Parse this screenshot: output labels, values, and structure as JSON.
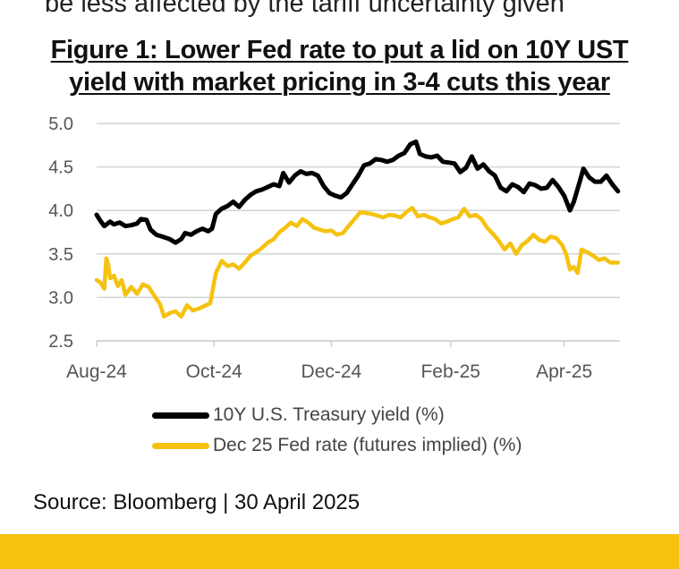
{
  "header": {
    "clipped_text": "be less affected by the tariff uncertainty given",
    "title_line1": "Figure 1: Lower Fed rate to put a lid on 10Y UST",
    "title_line2": "yield with market pricing in 3-4 cuts this year"
  },
  "footer": {
    "source": "Source: Bloomberg | 30 April 2025",
    "bar_color": "#f7c20f"
  },
  "chart_data": {
    "type": "line",
    "x_range": [
      "2024-08-01",
      "2025-04-30"
    ],
    "ylim": [
      2.5,
      5.0
    ],
    "yticks": [
      "2.5",
      "3.0",
      "3.5",
      "4.0",
      "4.5",
      "5.0"
    ],
    "xticks": [
      {
        "date": "2024-08-01",
        "label": "Aug-24"
      },
      {
        "date": "2024-10-01",
        "label": "Oct-24"
      },
      {
        "date": "2024-12-01",
        "label": "Dec-24"
      },
      {
        "date": "2025-02-01",
        "label": "Feb-25"
      },
      {
        "date": "2025-04-01",
        "label": "Apr-25"
      }
    ],
    "grid": "horizontal",
    "legend_position": "bottom",
    "series": [
      {
        "name": "10Y U.S. Treasury yield (%)",
        "color": "#000000",
        "points": [
          [
            "2024-08-01",
            3.95
          ],
          [
            "2024-08-03",
            3.88
          ],
          [
            "2024-08-05",
            3.82
          ],
          [
            "2024-08-08",
            3.87
          ],
          [
            "2024-08-10",
            3.84
          ],
          [
            "2024-08-13",
            3.86
          ],
          [
            "2024-08-16",
            3.82
          ],
          [
            "2024-08-19",
            3.83
          ],
          [
            "2024-08-22",
            3.85
          ],
          [
            "2024-08-24",
            3.9
          ],
          [
            "2024-08-27",
            3.89
          ],
          [
            "2024-08-29",
            3.78
          ],
          [
            "2024-09-01",
            3.72
          ],
          [
            "2024-09-04",
            3.7
          ],
          [
            "2024-09-08",
            3.67
          ],
          [
            "2024-09-11",
            3.63
          ],
          [
            "2024-09-14",
            3.67
          ],
          [
            "2024-09-16",
            3.74
          ],
          [
            "2024-09-19",
            3.72
          ],
          [
            "2024-09-22",
            3.76
          ],
          [
            "2024-09-25",
            3.79
          ],
          [
            "2024-09-28",
            3.76
          ],
          [
            "2024-09-30",
            3.79
          ],
          [
            "2024-10-02",
            3.96
          ],
          [
            "2024-10-05",
            4.02
          ],
          [
            "2024-10-08",
            4.05
          ],
          [
            "2024-10-11",
            4.1
          ],
          [
            "2024-10-14",
            4.04
          ],
          [
            "2024-10-17",
            4.12
          ],
          [
            "2024-10-20",
            4.18
          ],
          [
            "2024-10-23",
            4.22
          ],
          [
            "2024-10-26",
            4.24
          ],
          [
            "2024-10-29",
            4.27
          ],
          [
            "2024-11-01",
            4.3
          ],
          [
            "2024-11-04",
            4.28
          ],
          [
            "2024-11-06",
            4.43
          ],
          [
            "2024-11-09",
            4.32
          ],
          [
            "2024-11-12",
            4.4
          ],
          [
            "2024-11-15",
            4.45
          ],
          [
            "2024-11-18",
            4.42
          ],
          [
            "2024-11-21",
            4.43
          ],
          [
            "2024-11-24",
            4.4
          ],
          [
            "2024-11-27",
            4.28
          ],
          [
            "2024-11-30",
            4.2
          ],
          [
            "2024-12-03",
            4.17
          ],
          [
            "2024-12-06",
            4.15
          ],
          [
            "2024-12-09",
            4.2
          ],
          [
            "2024-12-12",
            4.3
          ],
          [
            "2024-12-15",
            4.4
          ],
          [
            "2024-12-18",
            4.52
          ],
          [
            "2024-12-21",
            4.54
          ],
          [
            "2024-12-24",
            4.59
          ],
          [
            "2024-12-27",
            4.58
          ],
          [
            "2024-12-30",
            4.56
          ],
          [
            "2025-01-02",
            4.58
          ],
          [
            "2025-01-05",
            4.63
          ],
          [
            "2025-01-08",
            4.66
          ],
          [
            "2025-01-11",
            4.76
          ],
          [
            "2025-01-14",
            4.79
          ],
          [
            "2025-01-16",
            4.65
          ],
          [
            "2025-01-19",
            4.62
          ],
          [
            "2025-01-22",
            4.61
          ],
          [
            "2025-01-25",
            4.63
          ],
          [
            "2025-01-28",
            4.56
          ],
          [
            "2025-01-31",
            4.55
          ],
          [
            "2025-02-03",
            4.54
          ],
          [
            "2025-02-06",
            4.44
          ],
          [
            "2025-02-09",
            4.49
          ],
          [
            "2025-02-12",
            4.62
          ],
          [
            "2025-02-15",
            4.48
          ],
          [
            "2025-02-18",
            4.53
          ],
          [
            "2025-02-21",
            4.45
          ],
          [
            "2025-02-24",
            4.4
          ],
          [
            "2025-02-27",
            4.26
          ],
          [
            "2025-03-02",
            4.22
          ],
          [
            "2025-03-05",
            4.3
          ],
          [
            "2025-03-08",
            4.27
          ],
          [
            "2025-03-11",
            4.21
          ],
          [
            "2025-03-14",
            4.31
          ],
          [
            "2025-03-17",
            4.29
          ],
          [
            "2025-03-20",
            4.25
          ],
          [
            "2025-03-23",
            4.26
          ],
          [
            "2025-03-26",
            4.35
          ],
          [
            "2025-03-29",
            4.27
          ],
          [
            "2025-04-01",
            4.17
          ],
          [
            "2025-04-03",
            4.06
          ],
          [
            "2025-04-04",
            4.0
          ],
          [
            "2025-04-06",
            4.1
          ],
          [
            "2025-04-08",
            4.25
          ],
          [
            "2025-04-10",
            4.4
          ],
          [
            "2025-04-11",
            4.48
          ],
          [
            "2025-04-14",
            4.38
          ],
          [
            "2025-04-17",
            4.33
          ],
          [
            "2025-04-20",
            4.33
          ],
          [
            "2025-04-23",
            4.4
          ],
          [
            "2025-04-26",
            4.3
          ],
          [
            "2025-04-29",
            4.22
          ]
        ]
      },
      {
        "name": "Dec 25 Fed rate (futures implied) (%)",
        "color": "#f5c20f",
        "points": [
          [
            "2024-08-01",
            3.2
          ],
          [
            "2024-08-03",
            3.17
          ],
          [
            "2024-08-05",
            3.1
          ],
          [
            "2024-08-06",
            3.45
          ],
          [
            "2024-08-07",
            3.38
          ],
          [
            "2024-08-08",
            3.22
          ],
          [
            "2024-08-10",
            3.25
          ],
          [
            "2024-08-12",
            3.13
          ],
          [
            "2024-08-14",
            3.2
          ],
          [
            "2024-08-16",
            3.03
          ],
          [
            "2024-08-19",
            3.12
          ],
          [
            "2024-08-22",
            3.04
          ],
          [
            "2024-08-25",
            3.15
          ],
          [
            "2024-08-28",
            3.12
          ],
          [
            "2024-08-31",
            3.02
          ],
          [
            "2024-09-03",
            2.92
          ],
          [
            "2024-09-05",
            2.78
          ],
          [
            "2024-09-08",
            2.82
          ],
          [
            "2024-09-11",
            2.84
          ],
          [
            "2024-09-14",
            2.78
          ],
          [
            "2024-09-17",
            2.91
          ],
          [
            "2024-09-20",
            2.85
          ],
          [
            "2024-09-23",
            2.87
          ],
          [
            "2024-09-26",
            2.9
          ],
          [
            "2024-09-29",
            2.93
          ],
          [
            "2024-10-02",
            3.28
          ],
          [
            "2024-10-05",
            3.42
          ],
          [
            "2024-10-08",
            3.36
          ],
          [
            "2024-10-11",
            3.38
          ],
          [
            "2024-10-14",
            3.33
          ],
          [
            "2024-10-17",
            3.4
          ],
          [
            "2024-10-20",
            3.48
          ],
          [
            "2024-10-23",
            3.52
          ],
          [
            "2024-10-26",
            3.57
          ],
          [
            "2024-10-29",
            3.63
          ],
          [
            "2024-11-01",
            3.67
          ],
          [
            "2024-11-04",
            3.75
          ],
          [
            "2024-11-07",
            3.8
          ],
          [
            "2024-11-10",
            3.86
          ],
          [
            "2024-11-13",
            3.82
          ],
          [
            "2024-11-16",
            3.9
          ],
          [
            "2024-11-19",
            3.86
          ],
          [
            "2024-11-22",
            3.8
          ],
          [
            "2024-11-25",
            3.78
          ],
          [
            "2024-11-28",
            3.76
          ],
          [
            "2024-12-01",
            3.77
          ],
          [
            "2024-12-04",
            3.72
          ],
          [
            "2024-12-07",
            3.74
          ],
          [
            "2024-12-10",
            3.82
          ],
          [
            "2024-12-13",
            3.9
          ],
          [
            "2024-12-16",
            3.98
          ],
          [
            "2024-12-19",
            3.97
          ],
          [
            "2024-12-22",
            3.96
          ],
          [
            "2024-12-25",
            3.94
          ],
          [
            "2024-12-28",
            3.92
          ],
          [
            "2024-12-31",
            3.95
          ],
          [
            "2025-01-03",
            3.94
          ],
          [
            "2025-01-06",
            3.92
          ],
          [
            "2025-01-09",
            3.98
          ],
          [
            "2025-01-12",
            4.03
          ],
          [
            "2025-01-15",
            3.93
          ],
          [
            "2025-01-18",
            3.95
          ],
          [
            "2025-01-21",
            3.92
          ],
          [
            "2025-01-24",
            3.9
          ],
          [
            "2025-01-27",
            3.85
          ],
          [
            "2025-01-30",
            3.87
          ],
          [
            "2025-02-02",
            3.9
          ],
          [
            "2025-02-05",
            3.92
          ],
          [
            "2025-02-08",
            4.02
          ],
          [
            "2025-02-11",
            3.93
          ],
          [
            "2025-02-14",
            3.95
          ],
          [
            "2025-02-17",
            3.9
          ],
          [
            "2025-02-20",
            3.8
          ],
          [
            "2025-02-23",
            3.73
          ],
          [
            "2025-02-26",
            3.65
          ],
          [
            "2025-03-01",
            3.55
          ],
          [
            "2025-03-04",
            3.62
          ],
          [
            "2025-03-07",
            3.5
          ],
          [
            "2025-03-10",
            3.6
          ],
          [
            "2025-03-13",
            3.65
          ],
          [
            "2025-03-16",
            3.72
          ],
          [
            "2025-03-19",
            3.66
          ],
          [
            "2025-03-22",
            3.64
          ],
          [
            "2025-03-25",
            3.7
          ],
          [
            "2025-03-28",
            3.68
          ],
          [
            "2025-03-31",
            3.6
          ],
          [
            "2025-04-02",
            3.5
          ],
          [
            "2025-04-04",
            3.32
          ],
          [
            "2025-04-06",
            3.35
          ],
          [
            "2025-04-08",
            3.28
          ],
          [
            "2025-04-10",
            3.55
          ],
          [
            "2025-04-13",
            3.52
          ],
          [
            "2025-04-16",
            3.48
          ],
          [
            "2025-04-19",
            3.43
          ],
          [
            "2025-04-22",
            3.45
          ],
          [
            "2025-04-25",
            3.4
          ],
          [
            "2025-04-29",
            3.4
          ]
        ]
      }
    ]
  }
}
